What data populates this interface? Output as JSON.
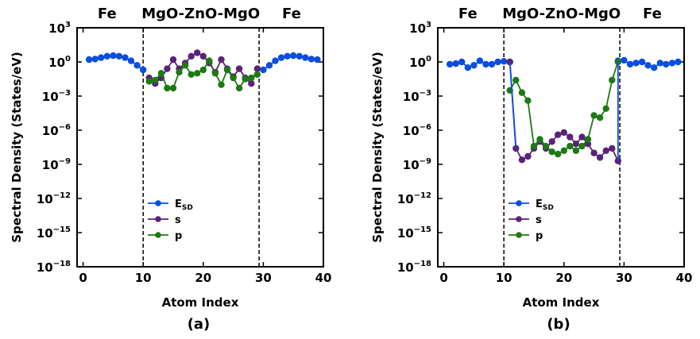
{
  "chart_data": [
    {
      "type": "line",
      "panel_label": "(a)",
      "xlabel": "Atom Index",
      "ylabel": "Spectral Density (States/eV)",
      "yscale": "log",
      "xlim": [
        -1,
        40
      ],
      "ylim_exp": [
        -18,
        3
      ],
      "xticks": [
        0,
        10,
        20,
        30,
        40
      ],
      "yticks_exp": [
        -18,
        -15,
        -12,
        -9,
        -6,
        -3,
        0,
        3
      ],
      "ytick_base": "10",
      "boundaries": [
        10,
        29.3
      ],
      "region_labels": [
        {
          "text": "Fe",
          "x": 4
        },
        {
          "text": "MgO-ZnO-MgO",
          "x": 19.6
        },
        {
          "text": "Fe",
          "x": 34.7
        }
      ],
      "legend": {
        "position": "lower-center",
        "entries": [
          {
            "label": "E",
            "sub": "SD",
            "series": "E_SD"
          },
          {
            "label": "s",
            "sub": "",
            "series": "s"
          },
          {
            "label": "p",
            "sub": "",
            "series": "p"
          }
        ]
      },
      "series": [
        {
          "name": "E_SD",
          "color": "#0a4ee0",
          "x": [
            1,
            2,
            3,
            4,
            5,
            6,
            7,
            8,
            9,
            10,
            30,
            31,
            32,
            33,
            34,
            35,
            36,
            37,
            38,
            39
          ],
          "log10y": [
            0.2,
            0.25,
            0.38,
            0.5,
            0.55,
            0.5,
            0.38,
            0.1,
            -0.3,
            -0.7,
            -0.7,
            -0.3,
            0.1,
            0.38,
            0.5,
            0.55,
            0.5,
            0.38,
            0.25,
            0.2
          ]
        },
        {
          "name": "s",
          "color": "#5b2277",
          "x": [
            11,
            12,
            13,
            14,
            15,
            16,
            17,
            18,
            19,
            20,
            21,
            22,
            23,
            24,
            25,
            26,
            27,
            28,
            29
          ],
          "log10y": [
            -1.4,
            -1.9,
            -1.4,
            -0.6,
            0.2,
            -0.6,
            -0.1,
            0.5,
            0.8,
            0.5,
            -0.1,
            -0.9,
            0.2,
            -0.6,
            -1.3,
            -0.6,
            -1.4,
            -1.9,
            -0.6
          ]
        },
        {
          "name": "p",
          "color": "#1d7a12",
          "x": [
            11,
            12,
            13,
            14,
            15,
            16,
            17,
            18,
            19,
            20,
            21,
            22,
            23,
            24,
            25,
            26,
            27,
            28,
            29
          ],
          "log10y": [
            -1.7,
            -1.6,
            -1.0,
            -2.3,
            -2.3,
            -0.9,
            -0.3,
            -1.1,
            -1.0,
            -0.7,
            0.1,
            -1.0,
            -2.0,
            -0.7,
            -1.4,
            -2.3,
            -1.5,
            -1.4,
            -1.1
          ]
        }
      ]
    },
    {
      "type": "line",
      "panel_label": "(b)",
      "xlabel": "Atom Index",
      "ylabel": "Spectral Density (States/eV)",
      "yscale": "log",
      "xlim": [
        -1,
        40
      ],
      "ylim_exp": [
        -18,
        3
      ],
      "xticks": [
        0,
        10,
        20,
        30,
        40
      ],
      "yticks_exp": [
        -18,
        -15,
        -12,
        -9,
        -6,
        -3,
        0,
        3
      ],
      "ytick_base": "10",
      "boundaries": [
        10,
        29.3
      ],
      "region_labels": [
        {
          "text": "Fe",
          "x": 4
        },
        {
          "text": "MgO-ZnO-MgO",
          "x": 19.6
        },
        {
          "text": "Fe",
          "x": 34.7
        }
      ],
      "legend": {
        "position": "lower-center",
        "entries": [
          {
            "label": "E",
            "sub": "SD",
            "series": "E_SD"
          },
          {
            "label": "s",
            "sub": "",
            "series": "s"
          },
          {
            "label": "p",
            "sub": "",
            "series": "p"
          }
        ]
      },
      "series": [
        {
          "name": "E_SD",
          "color": "#0a4ee0",
          "x": [
            1,
            2,
            3,
            4,
            5,
            6,
            7,
            8,
            9,
            10,
            11,
            29,
            30,
            31,
            32,
            33,
            34,
            35,
            36,
            37,
            38,
            39
          ],
          "log10y": [
            -0.2,
            -0.15,
            0.0,
            -0.5,
            -0.3,
            0.1,
            -0.2,
            -0.2,
            0.0,
            0.05,
            0.0,
            0.1,
            0.15,
            -0.2,
            -0.1,
            0.0,
            -0.3,
            -0.5,
            -0.1,
            -0.2,
            -0.1,
            0.0
          ]
        },
        {
          "name": "s",
          "color": "#5b2277",
          "x": [
            11,
            12,
            13,
            14,
            15,
            16,
            17,
            18,
            19,
            20,
            21,
            22,
            23,
            24,
            25,
            26,
            27,
            28,
            29
          ],
          "log10y": [
            0.0,
            -7.6,
            -8.6,
            -8.3,
            -7.6,
            -7.0,
            -7.6,
            -7.0,
            -6.4,
            -6.2,
            -6.6,
            -7.2,
            -6.6,
            -7.2,
            -8.0,
            -8.4,
            -7.8,
            -7.6,
            -8.7
          ]
        },
        {
          "name": "p",
          "color": "#1d7a12",
          "x": [
            11,
            12,
            13,
            14,
            15,
            16,
            17,
            18,
            19,
            20,
            21,
            22,
            23,
            24,
            25,
            26,
            27,
            28,
            29
          ],
          "log10y": [
            -2.5,
            -1.6,
            -2.7,
            -3.4,
            -7.4,
            -6.8,
            -7.4,
            -7.9,
            -8.1,
            -7.8,
            -7.4,
            -7.8,
            -7.4,
            -6.8,
            -4.7,
            -4.9,
            -4.1,
            -1.6,
            0.0
          ]
        }
      ]
    }
  ]
}
